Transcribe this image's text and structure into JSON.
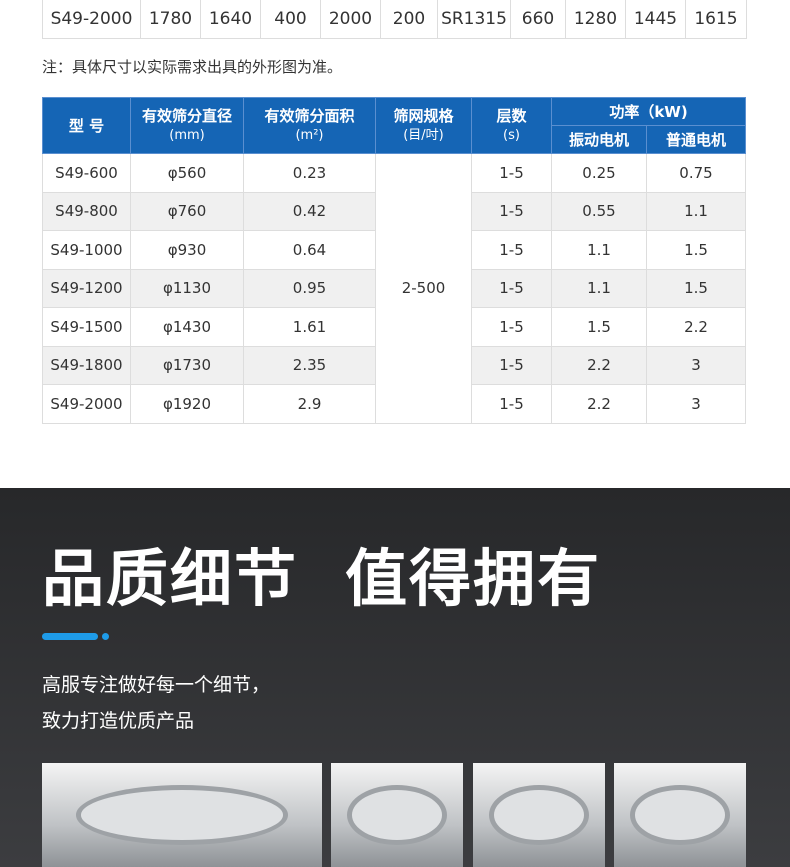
{
  "dimension_row": [
    "S49-2000",
    "1780",
    "1640",
    "400",
    "2000",
    "200",
    "SR1315",
    "660",
    "1280",
    "1445",
    "1615"
  ],
  "note": "注：具体尺寸以实际需求出具的外形图为准。",
  "spec_table": {
    "headers": {
      "model": "型 号",
      "diameter": "有效筛分直径",
      "diameter_unit": "(mm)",
      "area": "有效筛分面积",
      "area_unit": "(m²)",
      "mesh": "筛网规格",
      "mesh_unit": "(目/吋)",
      "layers": "层数",
      "layers_unit": "(s)",
      "power": "功率（kW)",
      "vib_motor": "振动电机",
      "normal_motor": "普通电机"
    },
    "mesh_value": "2-500",
    "rows": [
      {
        "model": "S49-600",
        "diameter": "φ560",
        "area": "0.23",
        "layers": "1-5",
        "vib": "0.25",
        "normal": "0.75"
      },
      {
        "model": "S49-800",
        "diameter": "φ760",
        "area": "0.42",
        "layers": "1-5",
        "vib": "0.55",
        "normal": "1.1"
      },
      {
        "model": "S49-1000",
        "diameter": "φ930",
        "area": "0.64",
        "layers": "1-5",
        "vib": "1.1",
        "normal": "1.5"
      },
      {
        "model": "S49-1200",
        "diameter": "φ1130",
        "area": "0.95",
        "layers": "1-5",
        "vib": "1.1",
        "normal": "1.5"
      },
      {
        "model": "S49-1500",
        "diameter": "φ1430",
        "area": "1.61",
        "layers": "1-5",
        "vib": "1.5",
        "normal": "2.2"
      },
      {
        "model": "S49-1800",
        "diameter": "φ1730",
        "area": "2.35",
        "layers": "1-5",
        "vib": "2.2",
        "normal": "3"
      },
      {
        "model": "S49-2000",
        "diameter": "φ1920",
        "area": "2.9",
        "layers": "1-5",
        "vib": "2.2",
        "normal": "3"
      }
    ]
  },
  "section": {
    "title": "品质细节  值得拥有",
    "desc_line1": "高服专注做好每一个细节，",
    "desc_line2": "致力打造优质产品",
    "accent": "#1e9be8"
  }
}
